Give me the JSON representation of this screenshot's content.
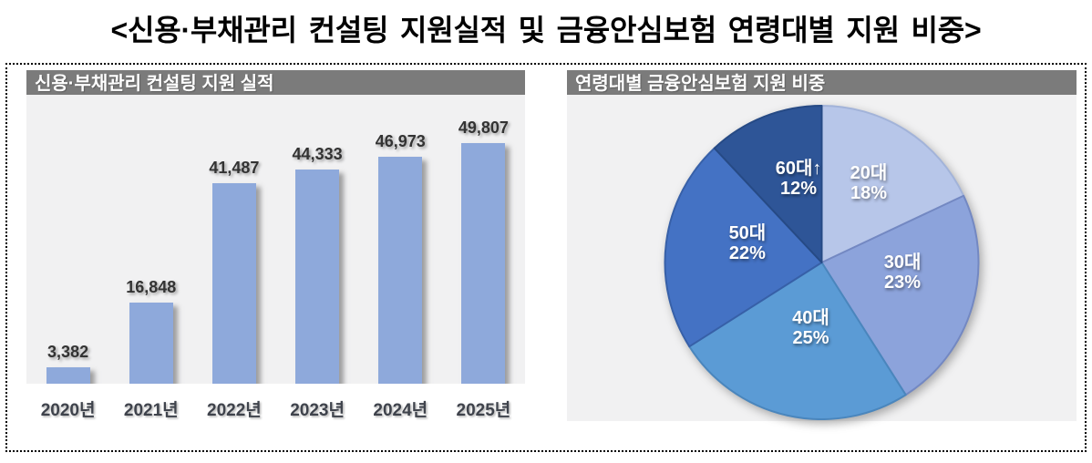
{
  "page_title": "<신용·부채관리 컨설팅 지원실적 및 금융안심보험 연령대별 지원 비중>",
  "colors": {
    "page_background": "#FFFFFF",
    "dotted_border": "#000000",
    "panel_header_background": "#7B7B7B",
    "panel_header_text": "#FFFFFF",
    "panel_body_background": "#F1F1F2",
    "bar_fill": "#8EA9DB",
    "bar_value_text": "#333333",
    "axis_label_text": "#3F434C",
    "pie_label_text": "#FFFFFF"
  },
  "chart_data": [
    {
      "type": "bar",
      "title": "신용·부채관리 컨설팅 지원 실적",
      "categories": [
        "2020년",
        "2021년",
        "2022년",
        "2023년",
        "2024년",
        "2025년"
      ],
      "values": [
        3382,
        16848,
        41487,
        44333,
        46973,
        49807
      ],
      "data_labels": [
        "3,382",
        "16,848",
        "41,487",
        "44,333",
        "46,973",
        "49,807"
      ],
      "xlabel": "",
      "ylabel": "",
      "ylim": [
        0,
        49807
      ],
      "grid": false,
      "legend": "none",
      "bar_color": "#8EA9DB"
    },
    {
      "type": "pie",
      "title": "연령대별 금융안심보험 지원 비중",
      "labels": [
        "20대",
        "30대",
        "40대",
        "50대",
        "60대↑"
      ],
      "values": [
        18,
        23,
        25,
        22,
        12
      ],
      "percent_labels": [
        "18%",
        "23%",
        "25%",
        "22%",
        "12%"
      ],
      "slice_colors": [
        "#B7C6E9",
        "#8CA3DB",
        "#5B9BD5",
        "#4472C4",
        "#2E5597"
      ],
      "slice_border_colors": [
        "#A2B3D9",
        "#7388C2",
        "#4A86BD",
        "#3760A8",
        "#264A85"
      ],
      "start_angle_deg": 0,
      "direction": "clockwise",
      "label_position": "inside",
      "legend": "none"
    }
  ]
}
